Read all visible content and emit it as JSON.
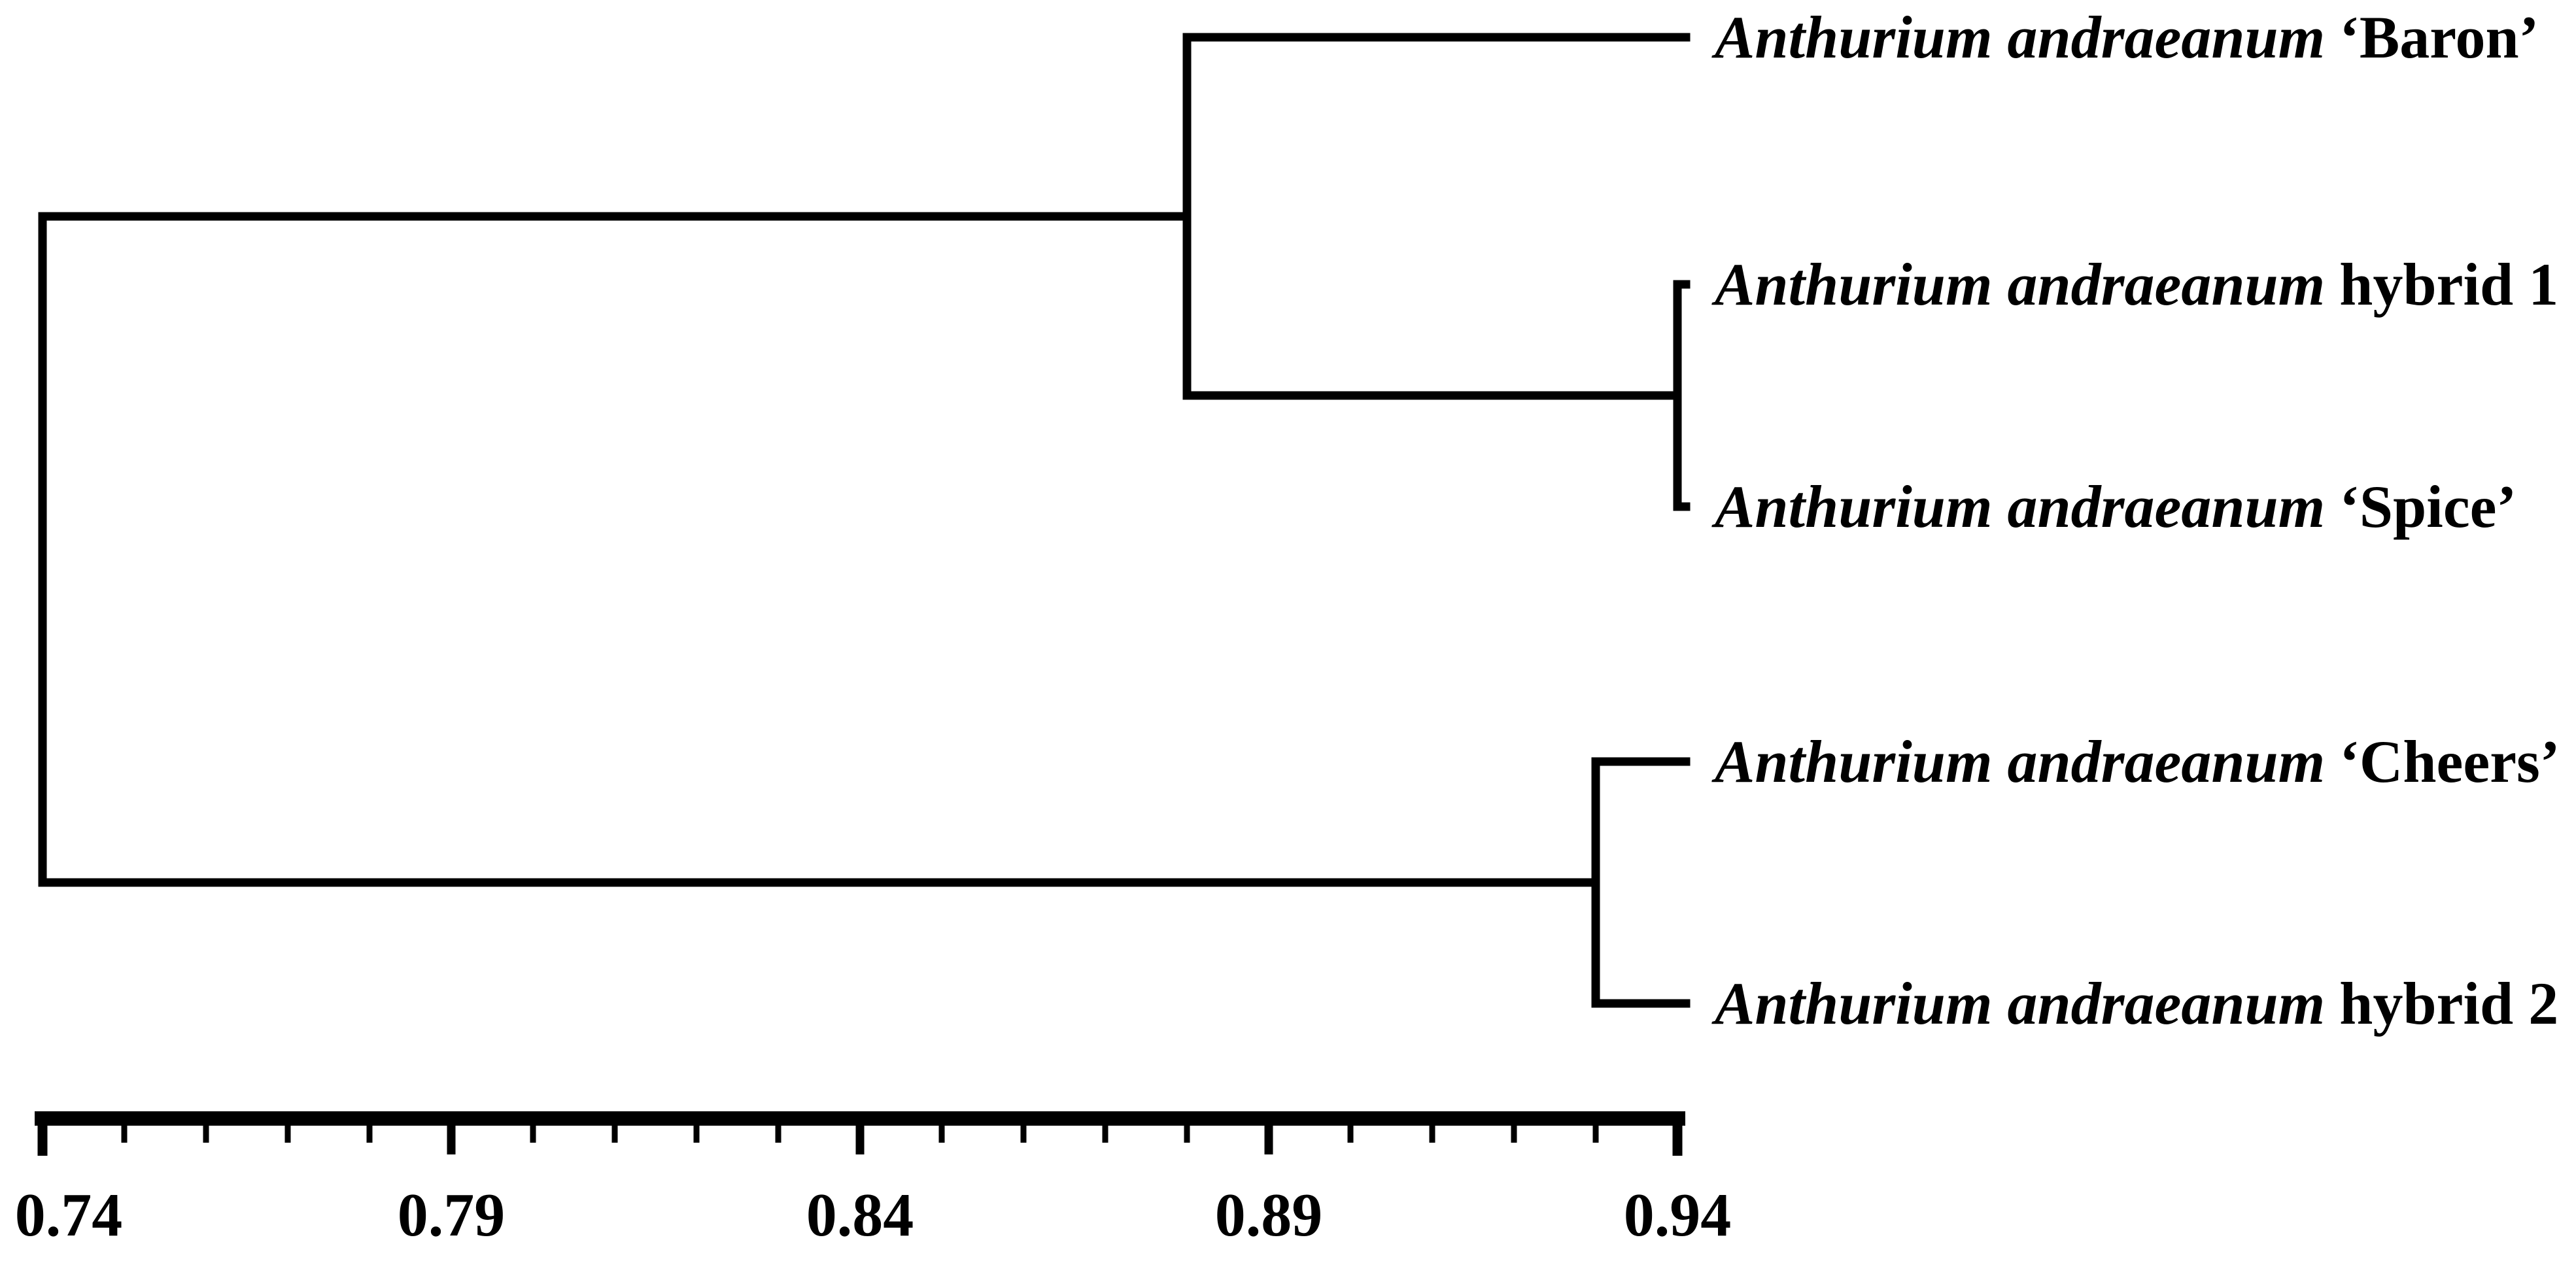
{
  "figure": {
    "background_color": "#ffffff",
    "line_color": "#000000",
    "text_color": "#000000"
  },
  "chart_data": {
    "type": "dendrogram",
    "orientation": "horizontal, leaves on right",
    "title": "",
    "xlabel": "",
    "ylabel": "",
    "grid": "off",
    "x_axis": {
      "min": 0.74,
      "max": 0.94,
      "major_tick_step": 0.05,
      "minor_tick_step": 0.01,
      "tick_labels": [
        "0.74",
        "0.79",
        "0.84",
        "0.89",
        "0.94"
      ]
    },
    "leaves": [
      {
        "species": "Anthurium andraeanum",
        "cultivar": "‘Baron’"
      },
      {
        "species": "Anthurium andraeanum",
        "cultivar": "hybrid 1"
      },
      {
        "species": "Anthurium andraeanum",
        "cultivar": "‘Spice’"
      },
      {
        "species": "Anthurium andraeanum",
        "cultivar": "‘Cheers’"
      },
      {
        "species": "Anthurium andraeanum",
        "cultivar": "hybrid 2"
      }
    ],
    "merges": [
      {
        "id": "node-hybrid1-spice",
        "joins": [
          "hybrid 1",
          "‘Spice’"
        ],
        "similarity": 0.94
      },
      {
        "id": "node-baron-cluster",
        "joins": [
          "‘Baron’",
          "node-hybrid1-spice"
        ],
        "similarity": 0.88
      },
      {
        "id": "node-cheers-hybrid2",
        "joins": [
          "‘Cheers’",
          "hybrid 2"
        ],
        "similarity": 0.93
      },
      {
        "id": "root",
        "joins": [
          "node-baron-cluster",
          "node-cheers-hybrid2"
        ],
        "similarity": 0.74
      }
    ]
  }
}
